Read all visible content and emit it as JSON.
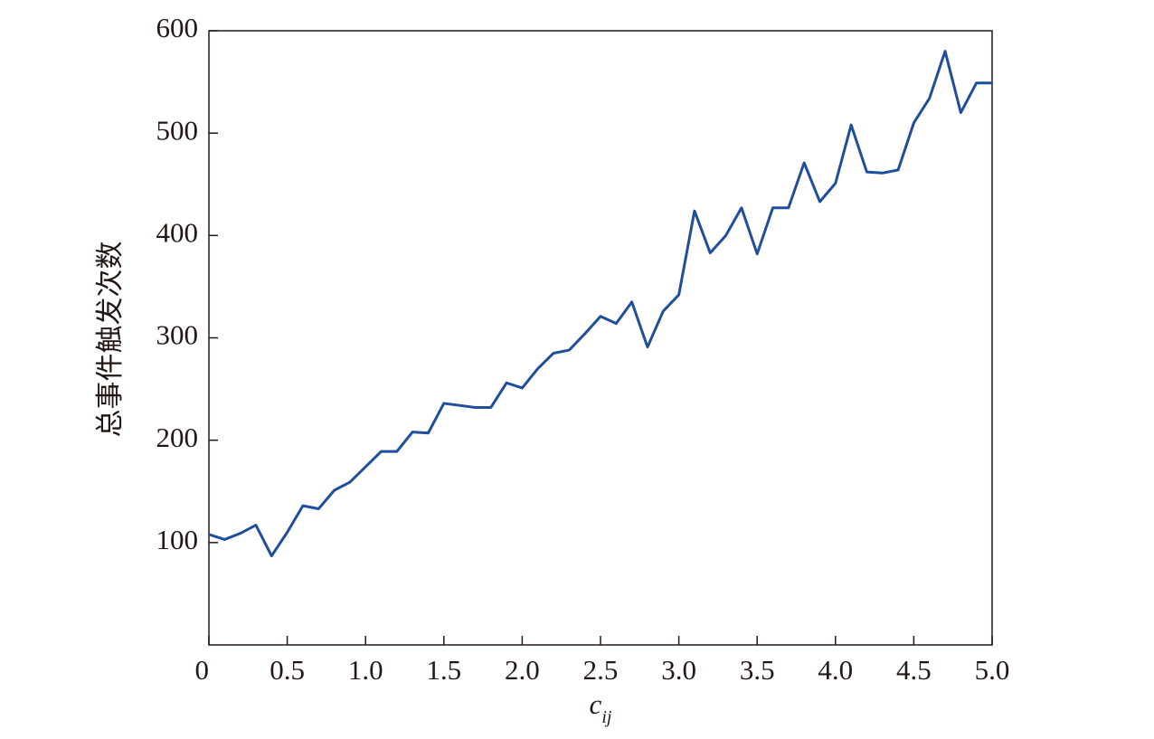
{
  "chart_data": {
    "type": "line",
    "y_label": "总事件触发次数",
    "x_label": "c",
    "x_label_subscript": "ij",
    "x": [
      0,
      0.1,
      0.2,
      0.3,
      0.4,
      0.5,
      0.6,
      0.7,
      0.8,
      0.9,
      1.0,
      1.1,
      1.2,
      1.3,
      1.4,
      1.5,
      1.6,
      1.7,
      1.8,
      1.9,
      2.0,
      2.1,
      2.2,
      2.3,
      2.4,
      2.5,
      2.6,
      2.7,
      2.8,
      2.9,
      3.0,
      3.1,
      3.2,
      3.3,
      3.4,
      3.5,
      3.6,
      3.7,
      3.8,
      3.9,
      4.0,
      4.1,
      4.2,
      4.3,
      4.4,
      4.5,
      4.6,
      4.7,
      4.8,
      4.9,
      5.0
    ],
    "values": [
      108,
      103,
      109,
      117,
      87,
      110,
      136,
      133,
      151,
      159,
      174,
      189,
      189,
      208,
      207,
      236,
      234,
      232,
      232,
      256,
      251,
      270,
      285,
      288,
      304,
      321,
      314,
      335,
      291,
      326,
      342,
      424,
      383,
      400,
      427,
      382,
      427,
      427,
      471,
      433,
      451,
      508,
      462,
      461,
      464,
      510,
      534,
      580,
      520,
      549,
      549
    ],
    "color": "#1f4e9c",
    "xlim": [
      0,
      5.0
    ],
    "ylim": [
      0,
      600
    ],
    "xticks": [
      0,
      0.5,
      {
        "value": 1,
        "label": "1.0"
      },
      1.5,
      {
        "value": 2,
        "label": "2.0"
      },
      2.5,
      {
        "value": 3,
        "label": "3.0"
      },
      3.5,
      {
        "value": 4,
        "label": "4.0"
      },
      4.5,
      {
        "value": 5,
        "label": "5.0"
      }
    ],
    "yticks": [
      100,
      200,
      300,
      400,
      500,
      600
    ]
  }
}
